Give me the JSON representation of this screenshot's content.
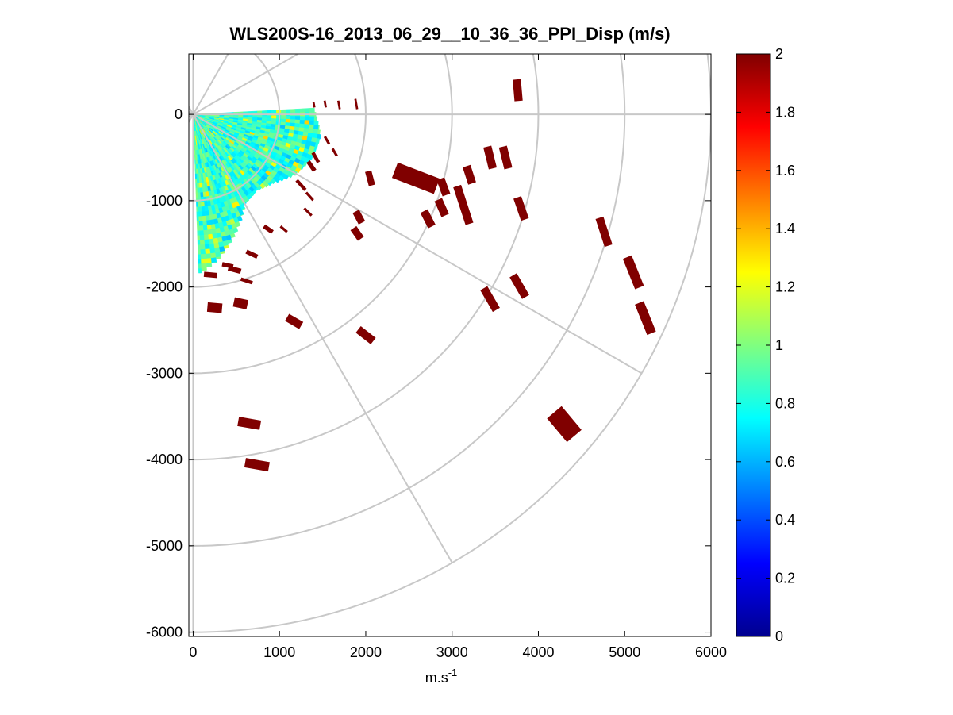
{
  "chart_data": {
    "type": "heatmap",
    "subtype": "polar-ppi-scan",
    "title": "WLS200S-16_2013_06_29__10_36_36_PPI_Disp (m/s)",
    "xlabel": "m.s",
    "xlabel_superscript": "-1",
    "ylabel": "",
    "xlim": [
      -50,
      6000
    ],
    "ylim": [
      -6050,
      700
    ],
    "x_ticks": [
      0,
      1000,
      2000,
      3000,
      4000,
      5000,
      6000
    ],
    "x_tick_labels": [
      "0",
      "1000",
      "2000",
      "3000",
      "4000",
      "5000",
      "6000"
    ],
    "y_ticks": [
      0,
      -1000,
      -2000,
      -3000,
      -4000,
      -5000,
      -6000
    ],
    "y_tick_labels": [
      "0",
      "-1000",
      "-2000",
      "-3000",
      "-4000",
      "-5000",
      "-6000"
    ],
    "polar_grid": {
      "ring_radii": [
        1000,
        2000,
        3000,
        4000,
        5000,
        6000
      ],
      "spoke_angles_deg": [
        0,
        -30,
        -60,
        -90,
        30,
        60,
        90,
        120,
        150,
        180,
        210,
        240
      ],
      "grid": true
    },
    "colorbar": {
      "colormap": "jet",
      "range": [
        0,
        2
      ],
      "ticks": [
        0,
        0.2,
        0.4,
        0.6,
        0.8,
        1,
        1.2,
        1.4,
        1.6,
        1.8,
        2
      ],
      "tick_labels": [
        "0",
        "0.2",
        "0.4",
        "0.6",
        "0.8",
        "1",
        "1.2",
        "1.4",
        "1.6",
        "1.8",
        "2"
      ]
    },
    "scan_sector": {
      "angle_from_deg": 3,
      "angle_to_deg": -88,
      "radius_min": 30,
      "radius_max_by_angle": [
        [
          3,
          1400
        ],
        [
          -10,
          1500
        ],
        [
          -20,
          1470
        ],
        [
          -30,
          1380
        ],
        [
          -40,
          1230
        ],
        [
          -50,
          1150
        ],
        [
          -60,
          1200
        ],
        [
          -70,
          1450
        ],
        [
          -80,
          1700
        ],
        [
          -88,
          1850
        ]
      ],
      "typical_value": 0.85,
      "value_range": [
        0.6,
        1.4
      ]
    },
    "saturated_patches": [
      {
        "x": 3760,
        "y": 280,
        "len": 250,
        "w": 95,
        "angle_deg": -85,
        "value": 2
      },
      {
        "x": 2580,
        "y": -740,
        "len": 520,
        "w": 190,
        "angle_deg": -21,
        "value": 2
      },
      {
        "x": 3440,
        "y": -500,
        "len": 260,
        "w": 95,
        "angle_deg": -76,
        "value": 2
      },
      {
        "x": 3620,
        "y": -500,
        "len": 260,
        "w": 95,
        "angle_deg": -76,
        "value": 2
      },
      {
        "x": 3200,
        "y": -700,
        "len": 210,
        "w": 95,
        "angle_deg": -72,
        "value": 2
      },
      {
        "x": 3130,
        "y": -1050,
        "len": 460,
        "w": 95,
        "angle_deg": -72,
        "value": 2
      },
      {
        "x": 2900,
        "y": -840,
        "len": 200,
        "w": 95,
        "angle_deg": -70,
        "value": 2
      },
      {
        "x": 2880,
        "y": -1080,
        "len": 200,
        "w": 95,
        "angle_deg": -66,
        "value": 2
      },
      {
        "x": 2720,
        "y": -1210,
        "len": 200,
        "w": 95,
        "angle_deg": -63,
        "value": 2
      },
      {
        "x": 2050,
        "y": -740,
        "len": 170,
        "w": 75,
        "angle_deg": -75,
        "value": 2
      },
      {
        "x": 1920,
        "y": -1190,
        "len": 150,
        "w": 85,
        "angle_deg": -62,
        "value": 2
      },
      {
        "x": 1900,
        "y": -1380,
        "len": 150,
        "w": 85,
        "angle_deg": -55,
        "value": 2
      },
      {
        "x": 3800,
        "y": -1090,
        "len": 270,
        "w": 95,
        "angle_deg": -71,
        "value": 2
      },
      {
        "x": 4760,
        "y": -1360,
        "len": 340,
        "w": 95,
        "angle_deg": -72,
        "value": 2
      },
      {
        "x": 5100,
        "y": -1830,
        "len": 380,
        "w": 110,
        "angle_deg": -68,
        "value": 2
      },
      {
        "x": 5240,
        "y": -2360,
        "len": 380,
        "w": 110,
        "angle_deg": -68,
        "value": 2
      },
      {
        "x": 3780,
        "y": -1990,
        "len": 290,
        "w": 95,
        "angle_deg": -60,
        "value": 2
      },
      {
        "x": 3440,
        "y": -2140,
        "len": 290,
        "w": 95,
        "angle_deg": -60,
        "value": 2
      },
      {
        "x": 4300,
        "y": -3590,
        "len": 360,
        "w": 220,
        "angle_deg": -50,
        "value": 2
      },
      {
        "x": 1170,
        "y": -2400,
        "len": 190,
        "w": 95,
        "angle_deg": -30,
        "value": 2
      },
      {
        "x": 2000,
        "y": -2560,
        "len": 220,
        "w": 95,
        "angle_deg": -38,
        "value": 2
      },
      {
        "x": 550,
        "y": -2190,
        "len": 160,
        "w": 110,
        "angle_deg": -12,
        "value": 2
      },
      {
        "x": 250,
        "y": -2240,
        "len": 170,
        "w": 110,
        "angle_deg": -5,
        "value": 2
      },
      {
        "x": 650,
        "y": -3580,
        "len": 260,
        "w": 110,
        "angle_deg": -10,
        "value": 2
      },
      {
        "x": 740,
        "y": -4060,
        "len": 280,
        "w": 110,
        "angle_deg": -10,
        "value": 2
      },
      {
        "x": 1400,
        "y": 110,
        "len": 60,
        "w": 25,
        "angle_deg": -80,
        "value": 2
      },
      {
        "x": 1530,
        "y": 120,
        "len": 80,
        "w": 25,
        "angle_deg": -80,
        "value": 2
      },
      {
        "x": 1690,
        "y": 110,
        "len": 100,
        "w": 25,
        "angle_deg": -80,
        "value": 2
      },
      {
        "x": 1890,
        "y": 120,
        "len": 120,
        "w": 25,
        "angle_deg": -80,
        "value": 2
      },
      {
        "x": 1550,
        "y": -300,
        "len": 100,
        "w": 30,
        "angle_deg": -60,
        "value": 2
      },
      {
        "x": 1640,
        "y": -440,
        "len": 100,
        "w": 30,
        "angle_deg": -60,
        "value": 2
      },
      {
        "x": 1420,
        "y": -500,
        "len": 130,
        "w": 40,
        "angle_deg": -60,
        "value": 2
      },
      {
        "x": 1370,
        "y": -600,
        "len": 130,
        "w": 50,
        "angle_deg": -55,
        "value": 2
      },
      {
        "x": 1250,
        "y": -820,
        "len": 150,
        "w": 40,
        "angle_deg": -48,
        "value": 2
      },
      {
        "x": 1350,
        "y": -950,
        "len": 120,
        "w": 30,
        "angle_deg": -48,
        "value": 2
      },
      {
        "x": 1330,
        "y": -1130,
        "len": 120,
        "w": 30,
        "angle_deg": -45,
        "value": 2
      },
      {
        "x": 1050,
        "y": -1330,
        "len": 100,
        "w": 30,
        "angle_deg": -40,
        "value": 2
      },
      {
        "x": 870,
        "y": -1330,
        "len": 120,
        "w": 50,
        "angle_deg": -35,
        "value": 2
      },
      {
        "x": 680,
        "y": -1620,
        "len": 140,
        "w": 50,
        "angle_deg": -25,
        "value": 2
      },
      {
        "x": 480,
        "y": -1800,
        "len": 150,
        "w": 60,
        "angle_deg": -15,
        "value": 2
      },
      {
        "x": 200,
        "y": -1860,
        "len": 150,
        "w": 60,
        "angle_deg": -5,
        "value": 2
      },
      {
        "x": 400,
        "y": -1750,
        "len": 130,
        "w": 50,
        "angle_deg": -12,
        "value": 2
      },
      {
        "x": 620,
        "y": -1930,
        "len": 140,
        "w": 40,
        "angle_deg": -18,
        "value": 2
      }
    ]
  }
}
